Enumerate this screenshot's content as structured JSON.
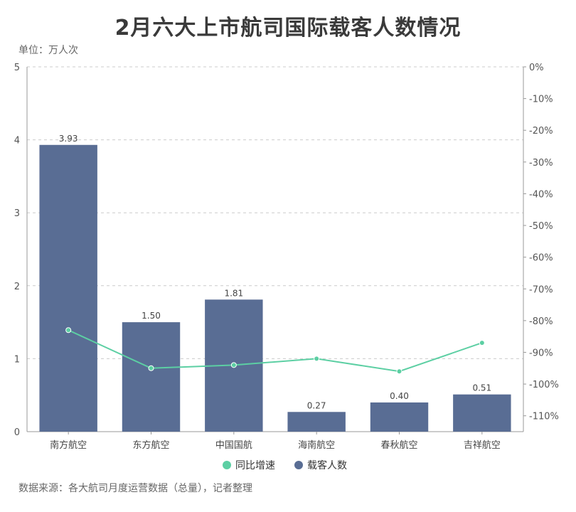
{
  "title": "2月六大上市航司国际载客人数情况",
  "unit_label": "单位：万人次",
  "source": "数据来源：各大航司月度运营数据（总量），记者整理",
  "legend": {
    "line_label": "同比增速",
    "bar_label": "载客人数"
  },
  "colors": {
    "bar": "#596d94",
    "line": "#5ccfa3",
    "grid": "#cccccc",
    "axis": "#999999"
  },
  "chart_data": {
    "type": "bar",
    "categories": [
      "南方航空",
      "东方航空",
      "中国国航",
      "海南航空",
      "春秋航空",
      "吉祥航空"
    ],
    "series": [
      {
        "name": "载客人数",
        "type": "bar",
        "axis": "left",
        "values": [
          3.93,
          1.5,
          1.81,
          0.27,
          0.4,
          0.51
        ],
        "labels": [
          "3.93",
          "1.50",
          "1.81",
          "0.27",
          "0.40",
          "0.51"
        ]
      },
      {
        "name": "同比增速",
        "type": "line",
        "axis": "right",
        "values": [
          -83,
          -95,
          -94,
          -92,
          -96,
          -87
        ]
      }
    ],
    "y_left": {
      "min": 0,
      "max": 5,
      "ticks": [
        "0",
        "1",
        "2",
        "3",
        "4",
        "5"
      ]
    },
    "y_right": {
      "min": -115,
      "max": 0,
      "ticks": [
        "0%",
        "-10%",
        "-20%",
        "-30%",
        "-40%",
        "-50%",
        "-60%",
        "-70%",
        "-80%",
        "-90%",
        "-100%",
        "-110%"
      ]
    },
    "grid": true,
    "legend_position": "bottom"
  }
}
